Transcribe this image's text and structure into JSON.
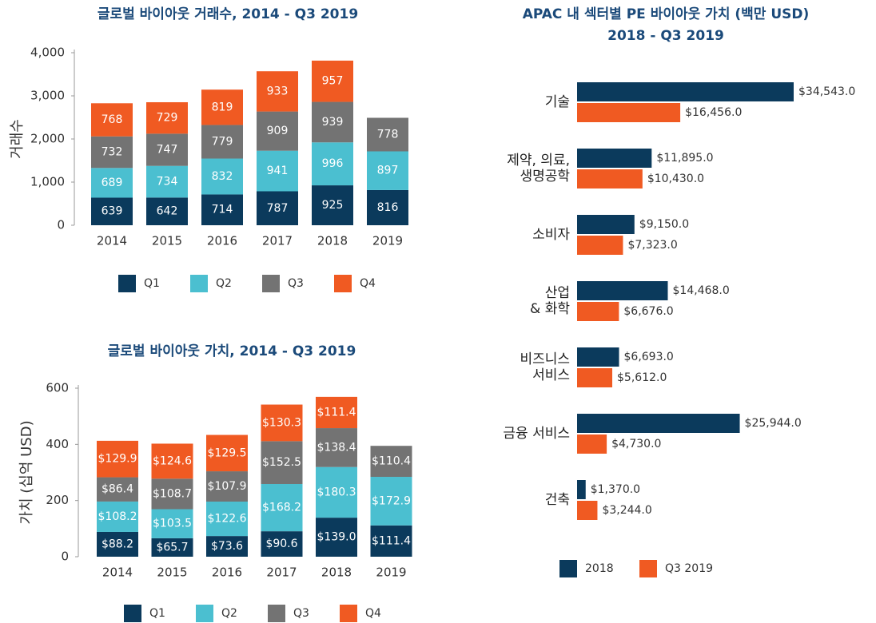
{
  "chart_data": [
    {
      "type": "bar",
      "stacked": true,
      "title": "글로벌 바이아웃 거래수, 2014 - Q3 2019",
      "ylabel": "거래수",
      "categories": [
        "2014",
        "2015",
        "2016",
        "2017",
        "2018",
        "2019"
      ],
      "series": [
        {
          "name": "Q1",
          "color": "#0b3a5c",
          "values": [
            639,
            642,
            714,
            787,
            925,
            816
          ]
        },
        {
          "name": "Q2",
          "color": "#4bbfd0",
          "values": [
            689,
            734,
            832,
            941,
            996,
            897
          ]
        },
        {
          "name": "Q3",
          "color": "#737373",
          "values": [
            732,
            747,
            779,
            909,
            939,
            778
          ]
        },
        {
          "name": "Q4",
          "color": "#f05a22",
          "values": [
            768,
            729,
            819,
            933,
            957,
            null
          ]
        }
      ],
      "ylim": [
        0,
        4000
      ],
      "yticks": [
        0,
        {
          "value": 1000,
          "label": "1,000"
        },
        {
          "value": 2000,
          "label": "2,000"
        },
        {
          "value": 3000,
          "label": "3,000"
        },
        {
          "value": 4000,
          "label": "4,000"
        }
      ]
    },
    {
      "type": "bar",
      "stacked": true,
      "title": "글로벌 바이아웃 가치, 2014 - Q3 2019",
      "ylabel": "가치 (십억 USD)",
      "categories": [
        "2014",
        "2015",
        "2016",
        "2017",
        "2018",
        "2019"
      ],
      "series": [
        {
          "name": "Q1",
          "color": "#0b3a5c",
          "values": [
            88.2,
            65.7,
            73.6,
            90.6,
            139.0,
            111.4
          ],
          "value_labels": [
            "$88.2",
            "$65.7",
            "$73.6",
            "$90.6",
            "$139.0",
            "$111.4"
          ]
        },
        {
          "name": "Q2",
          "color": "#4bbfd0",
          "values": [
            108.2,
            103.5,
            122.6,
            168.2,
            180.3,
            172.9
          ],
          "value_labels": [
            "$108.2",
            "$103.5",
            "$122.6",
            "$168.2",
            "$180.3",
            "$172.9"
          ]
        },
        {
          "name": "Q3",
          "color": "#737373",
          "values": [
            86.4,
            108.7,
            107.9,
            152.5,
            138.4,
            110.4
          ],
          "value_labels": [
            "$86.4",
            "$108.7",
            "$107.9",
            "$152.5",
            "$138.4",
            "$110.4"
          ]
        },
        {
          "name": "Q4",
          "color": "#f05a22",
          "values": [
            129.9,
            124.6,
            129.5,
            130.3,
            111.4,
            null
          ],
          "value_labels": [
            "$129.9",
            "$124.6",
            "$129.5",
            "$130.3",
            "$111.4",
            null
          ]
        }
      ],
      "ylim": [
        0,
        600
      ],
      "yticks": [
        0,
        200,
        400,
        600
      ]
    },
    {
      "type": "bar",
      "orientation": "horizontal",
      "title": "APAC 내 섹터별 PE 바이아웃 가치 (백만 USD)",
      "subtitle": "2018 - Q3 2019",
      "categories": [
        "기술",
        "제약, 의료,\n생명공학",
        "소비자",
        "산업\n& 화학",
        "비즈니스\n서비스",
        "금융 서비스",
        "건축"
      ],
      "series": [
        {
          "name": "2018",
          "color": "#0b3a5c",
          "values": [
            34543,
            11895,
            9150,
            14468,
            6693,
            25944,
            1370
          ],
          "value_labels": [
            "$34,543.0",
            "$11,895.0",
            "$9,150.0",
            "$14,468.0",
            "$6,693.0",
            "$25,944.0",
            "$1,370.0"
          ]
        },
        {
          "name": "Q3 2019",
          "color": "#f05a22",
          "values": [
            16456,
            10430,
            7323,
            6676,
            5612,
            4730,
            3244
          ],
          "value_labels": [
            "$16,456.0",
            "$10,430.0",
            "$7,323.0",
            "$6,676.0",
            "$5,612.0",
            "$4,730.0",
            "$3,244.0"
          ]
        }
      ]
    }
  ]
}
